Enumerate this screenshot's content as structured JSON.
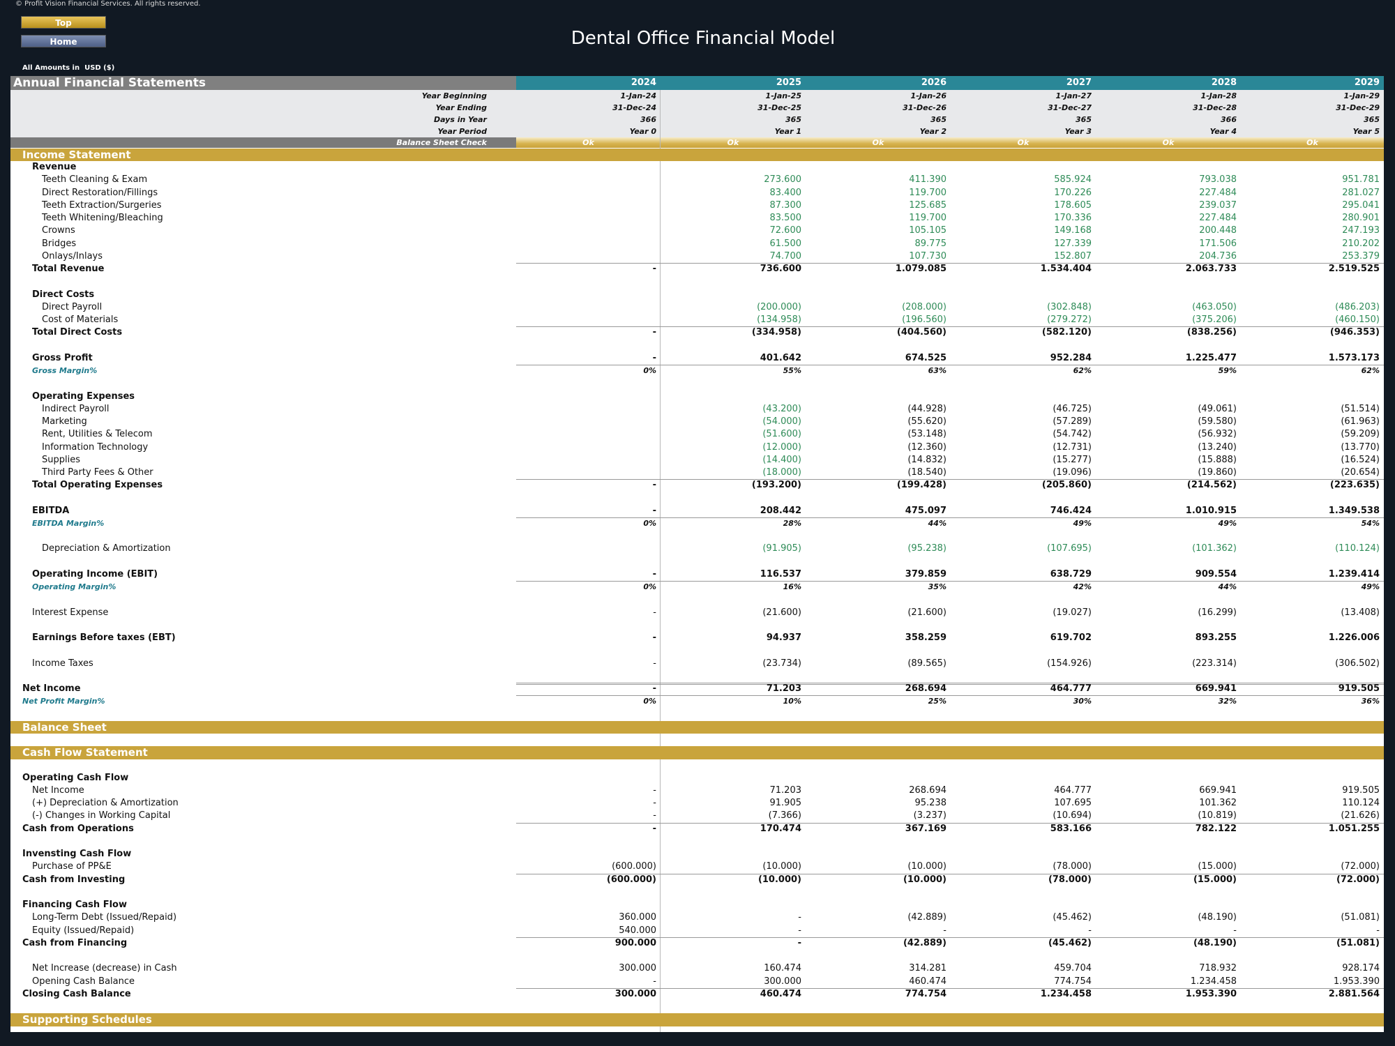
{
  "copyright": "© Profit Vision Financial Services. All rights reserved.",
  "buttons": [
    "Top",
    "Home"
  ],
  "title": "Dental Office Financial Model",
  "currency_note": "All Amounts in  USD ($)",
  "header": {
    "title": "Annual Financial Statements",
    "years": [
      "2024",
      "2025",
      "2026",
      "2027",
      "2028",
      "2029"
    ]
  },
  "periods": [
    {
      "label": "Year Beginning",
      "cells": [
        "1-Jan-24",
        "1-Jan-25",
        "1-Jan-26",
        "1-Jan-27",
        "1-Jan-28",
        "1-Jan-29"
      ]
    },
    {
      "label": "Year Ending",
      "cells": [
        "31-Dec-24",
        "31-Dec-25",
        "31-Dec-26",
        "31-Dec-27",
        "31-Dec-28",
        "31-Dec-29"
      ]
    },
    {
      "label": "Days in Year",
      "cells": [
        "366",
        "365",
        "365",
        "365",
        "366",
        "365"
      ]
    },
    {
      "label": "Year Period",
      "cells": [
        "Year 0",
        "Year 1",
        "Year 2",
        "Year 3",
        "Year 4",
        "Year 5"
      ]
    }
  ],
  "balance_check": {
    "label": "Balance Sheet Check",
    "cells": [
      "Ok",
      "Ok",
      "Ok",
      "Ok",
      "Ok",
      "Ok"
    ]
  },
  "rows": [
    {
      "style": "section",
      "label": "Income Statement"
    },
    {
      "style": "head",
      "level": 1,
      "label": "Revenue"
    },
    {
      "style": "line",
      "level": 2,
      "green": "all",
      "label": "Teeth Cleaning & Exam",
      "cells": [
        null,
        "273.600",
        "411.390",
        "585.924",
        "793.038",
        "951.781"
      ]
    },
    {
      "style": "line",
      "level": 2,
      "green": "all",
      "label": "Direct Restoration/Fillings",
      "cells": [
        null,
        "83.400",
        "119.700",
        "170.226",
        "227.484",
        "281.027"
      ]
    },
    {
      "style": "line",
      "level": 2,
      "green": "all",
      "label": "Teeth Extraction/Surgeries",
      "cells": [
        null,
        "87.300",
        "125.685",
        "178.605",
        "239.037",
        "295.041"
      ]
    },
    {
      "style": "line",
      "level": 2,
      "green": "all",
      "label": "Teeth Whitening/Bleaching",
      "cells": [
        null,
        "83.500",
        "119.700",
        "170.336",
        "227.484",
        "280.901"
      ]
    },
    {
      "style": "line",
      "level": 2,
      "green": "all",
      "label": "Crowns",
      "cells": [
        null,
        "72.600",
        "105.105",
        "149.168",
        "200.448",
        "247.193"
      ]
    },
    {
      "style": "line",
      "level": 2,
      "green": "all",
      "label": "Bridges",
      "cells": [
        null,
        "61.500",
        "89.775",
        "127.339",
        "171.506",
        "210.202"
      ]
    },
    {
      "style": "line",
      "level": 2,
      "green": "all",
      "label": "Onlays/Inlays",
      "cells": [
        null,
        "74.700",
        "107.730",
        "152.807",
        "204.736",
        "253.379"
      ]
    },
    {
      "style": "total",
      "level": 1,
      "label": "Total Revenue",
      "cells": [
        "-",
        "736.600",
        "1.079.085",
        "1.534.404",
        "2.063.733",
        "2.519.525"
      ]
    },
    {
      "style": "blank"
    },
    {
      "style": "head",
      "level": 1,
      "label": "Direct Costs"
    },
    {
      "style": "line",
      "level": 2,
      "green": "all",
      "label": "Direct Payroll",
      "cells": [
        null,
        "(200.000)",
        "(208.000)",
        "(302.848)",
        "(463.050)",
        "(486.203)"
      ]
    },
    {
      "style": "line",
      "level": 2,
      "green": "all",
      "label": "Cost of Materials",
      "cells": [
        null,
        "(134.958)",
        "(196.560)",
        "(279.272)",
        "(375.206)",
        "(460.150)"
      ]
    },
    {
      "style": "total",
      "level": 1,
      "label": "Total Direct Costs",
      "cells": [
        "-",
        "(334.958)",
        "(404.560)",
        "(582.120)",
        "(838.256)",
        "(946.353)"
      ]
    },
    {
      "style": "blank"
    },
    {
      "style": "head",
      "level": 1,
      "label": "Gross Profit",
      "cells": [
        "-",
        "401.642",
        "674.525",
        "952.284",
        "1.225.477",
        "1.573.173"
      ]
    },
    {
      "style": "margin",
      "level": 1,
      "label": "Gross Margin%",
      "cells": [
        "0%",
        "55%",
        "63%",
        "62%",
        "59%",
        "62%"
      ]
    },
    {
      "style": "blank"
    },
    {
      "style": "head",
      "level": 1,
      "label": "Operating Expenses"
    },
    {
      "style": "line",
      "level": 2,
      "green": "first",
      "label": "Indirect Payroll",
      "cells": [
        null,
        "(43.200)",
        "(44.928)",
        "(46.725)",
        "(49.061)",
        "(51.514)"
      ]
    },
    {
      "style": "line",
      "level": 2,
      "green": "first",
      "label": "Marketing",
      "cells": [
        null,
        "(54.000)",
        "(55.620)",
        "(57.289)",
        "(59.580)",
        "(61.963)"
      ]
    },
    {
      "style": "line",
      "level": 2,
      "green": "first",
      "label": "Rent, Utilities & Telecom",
      "cells": [
        null,
        "(51.600)",
        "(53.148)",
        "(54.742)",
        "(56.932)",
        "(59.209)"
      ]
    },
    {
      "style": "line",
      "level": 2,
      "green": "first",
      "label": "Information Technology",
      "cells": [
        null,
        "(12.000)",
        "(12.360)",
        "(12.731)",
        "(13.240)",
        "(13.770)"
      ]
    },
    {
      "style": "line",
      "level": 2,
      "green": "first",
      "label": "Supplies",
      "cells": [
        null,
        "(14.400)",
        "(14.832)",
        "(15.277)",
        "(15.888)",
        "(16.524)"
      ]
    },
    {
      "style": "line",
      "level": 2,
      "green": "first",
      "label": "Third Party Fees & Other",
      "cells": [
        null,
        "(18.000)",
        "(18.540)",
        "(19.096)",
        "(19.860)",
        "(20.654)"
      ]
    },
    {
      "style": "total",
      "level": 1,
      "label": "Total Operating Expenses",
      "cells": [
        "-",
        "(193.200)",
        "(199.428)",
        "(205.860)",
        "(214.562)",
        "(223.635)"
      ]
    },
    {
      "style": "blank"
    },
    {
      "style": "head",
      "level": 1,
      "label": "EBITDA",
      "cells": [
        "-",
        "208.442",
        "475.097",
        "746.424",
        "1.010.915",
        "1.349.538"
      ]
    },
    {
      "style": "margin",
      "level": 1,
      "label": "EBITDA Margin%",
      "cells": [
        "0%",
        "28%",
        "44%",
        "49%",
        "49%",
        "54%"
      ]
    },
    {
      "style": "blank"
    },
    {
      "style": "line",
      "level": 2,
      "green": "all",
      "label": "Depreciation & Amortization",
      "cells": [
        null,
        "(91.905)",
        "(95.238)",
        "(107.695)",
        "(101.362)",
        "(110.124)"
      ]
    },
    {
      "style": "blank"
    },
    {
      "style": "head",
      "level": 1,
      "label": "Operating Income (EBIT)",
      "cells": [
        "-",
        "116.537",
        "379.859",
        "638.729",
        "909.554",
        "1.239.414"
      ]
    },
    {
      "style": "margin",
      "level": 1,
      "label": "Operating Margin%",
      "cells": [
        "0%",
        "16%",
        "35%",
        "42%",
        "44%",
        "49%"
      ]
    },
    {
      "style": "blank"
    },
    {
      "style": "line",
      "level": 1,
      "label": "Interest Expense",
      "cells": [
        "-",
        "(21.600)",
        "(21.600)",
        "(19.027)",
        "(16.299)",
        "(13.408)"
      ]
    },
    {
      "style": "blank"
    },
    {
      "style": "head",
      "level": 1,
      "label": "Earnings Before taxes (EBT)",
      "cells": [
        "-",
        "94.937",
        "358.259",
        "619.702",
        "893.255",
        "1.226.006"
      ]
    },
    {
      "style": "blank"
    },
    {
      "style": "line",
      "level": 1,
      "label": "Income Taxes",
      "cells": [
        "-",
        "(23.734)",
        "(89.565)",
        "(154.926)",
        "(223.314)",
        "(306.502)"
      ]
    },
    {
      "style": "blank"
    },
    {
      "style": "total",
      "level": 0,
      "label": "Net Income",
      "cells": [
        "-",
        "71.203",
        "268.694",
        "464.777",
        "669.941",
        "919.505"
      ]
    },
    {
      "style": "margin",
      "level": 0,
      "label": "Net Profit Margin%",
      "cells": [
        "0%",
        "10%",
        "25%",
        "30%",
        "32%",
        "36%"
      ]
    },
    {
      "style": "blank"
    },
    {
      "style": "section",
      "label": "Balance Sheet"
    },
    {
      "style": "blank"
    },
    {
      "style": "section",
      "label": "Cash Flow Statement"
    },
    {
      "style": "blank"
    },
    {
      "style": "head",
      "level": 0,
      "label": "Operating Cash Flow"
    },
    {
      "style": "line",
      "level": 1,
      "label": "Net Income",
      "cells": [
        "-",
        "71.203",
        "268.694",
        "464.777",
        "669.941",
        "919.505"
      ]
    },
    {
      "style": "line",
      "level": 1,
      "label": "(+) Depreciation & Amortization",
      "cells": [
        "-",
        "91.905",
        "95.238",
        "107.695",
        "101.362",
        "110.124"
      ]
    },
    {
      "style": "line",
      "level": 1,
      "label": "(-) Changes in Working Capital",
      "cells": [
        "-",
        "(7.366)",
        "(3.237)",
        "(10.694)",
        "(10.819)",
        "(21.626)"
      ]
    },
    {
      "style": "total",
      "level": 0,
      "label": "Cash from Operations",
      "cells": [
        "-",
        "170.474",
        "367.169",
        "583.166",
        "782.122",
        "1.051.255"
      ]
    },
    {
      "style": "blank"
    },
    {
      "style": "head",
      "level": 0,
      "label": "Invensting Cash Flow"
    },
    {
      "style": "line",
      "level": 1,
      "label": "Purchase of PP&E",
      "cells": [
        "(600.000)",
        "(10.000)",
        "(10.000)",
        "(78.000)",
        "(15.000)",
        "(72.000)"
      ]
    },
    {
      "style": "total",
      "level": 0,
      "label": "Cash from Investing",
      "cells": [
        "(600.000)",
        "(10.000)",
        "(10.000)",
        "(78.000)",
        "(15.000)",
        "(72.000)"
      ]
    },
    {
      "style": "blank"
    },
    {
      "style": "head",
      "level": 0,
      "label": "Financing Cash Flow"
    },
    {
      "style": "line",
      "level": 1,
      "label": "Long-Term Debt (Issued/Repaid)",
      "cells": [
        "360.000",
        "-",
        "(42.889)",
        "(45.462)",
        "(48.190)",
        "(51.081)"
      ]
    },
    {
      "style": "line",
      "level": 1,
      "label": "Equity (Issued/Repaid)",
      "cells": [
        "540.000",
        "-",
        "-",
        "-",
        "-",
        "-"
      ]
    },
    {
      "style": "total",
      "level": 0,
      "label": "Cash from Financing",
      "cells": [
        "900.000",
        "-",
        "(42.889)",
        "(45.462)",
        "(48.190)",
        "(51.081)"
      ]
    },
    {
      "style": "blank"
    },
    {
      "style": "line",
      "level": 1,
      "label": "Net Increase (decrease) in Cash",
      "cells": [
        "300.000",
        "160.474",
        "314.281",
        "459.704",
        "718.932",
        "928.174"
      ]
    },
    {
      "style": "line",
      "level": 1,
      "label": "Opening Cash Balance",
      "cells": [
        "-",
        "300.000",
        "460.474",
        "774.754",
        "1.234.458",
        "1.953.390"
      ]
    },
    {
      "style": "total",
      "level": 0,
      "label": "Closing Cash Balance",
      "cells": [
        "300.000",
        "460.474",
        "774.754",
        "1.234.458",
        "1.953.390",
        "2.881.564"
      ]
    },
    {
      "style": "blank"
    },
    {
      "style": "section",
      "label": "Supporting Schedules"
    }
  ]
}
